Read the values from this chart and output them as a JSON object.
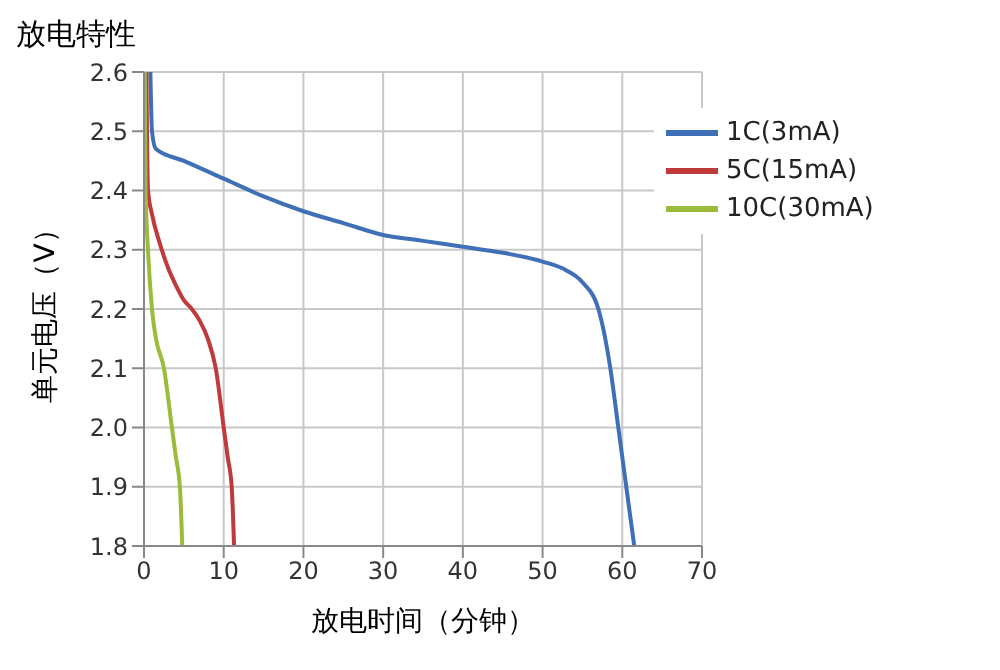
{
  "chart_data": {
    "type": "line",
    "title": "放电特性",
    "xlabel": "放电时间（分钟）",
    "ylabel": "单元电压（V）",
    "xlim": [
      0,
      70
    ],
    "xticks": [
      0,
      10,
      20,
      30,
      40,
      50,
      60,
      70
    ],
    "ylim": [
      1.8,
      2.6
    ],
    "yticks": [
      1.8,
      1.9,
      {
        "value": 2,
        "label": "2.0"
      },
      2.1,
      2.2,
      2.3,
      2.4,
      2.5,
      2.6
    ],
    "grid": true,
    "legend": "top right",
    "marker": "none",
    "line_style": "solid",
    "series": [
      {
        "name": "1C(3mA)",
        "color": "#3f6fb6",
        "x": [
          0.8,
          1,
          1.5,
          5,
          10,
          15,
          20,
          25,
          30,
          35,
          40,
          45,
          50,
          53,
          55,
          57,
          58.5,
          59.5,
          60.5,
          61.5
        ],
        "values": [
          2.6,
          2.5,
          2.47,
          2.45,
          2.42,
          2.39,
          2.365,
          2.345,
          2.325,
          2.315,
          2.305,
          2.295,
          2.28,
          2.265,
          2.245,
          2.2,
          2.1,
          2.0,
          1.9,
          1.8
        ]
      },
      {
        "name": "5C(15mA)",
        "color": "#c0393b",
        "x": [
          0.3,
          0.5,
          1,
          2,
          3,
          4,
          5,
          6,
          7,
          8,
          9,
          10,
          10.5,
          11,
          11.3
        ],
        "values": [
          2.6,
          2.4,
          2.36,
          2.31,
          2.27,
          2.24,
          2.215,
          2.2,
          2.18,
          2.15,
          2.1,
          2.0,
          1.95,
          1.9,
          1.8
        ]
      },
      {
        "name": "10C(30mA)",
        "color": "#9bbb3a",
        "x": [
          0.1,
          0.2,
          0.5,
          1,
          1.5,
          2.5,
          3.5,
          4,
          4.5,
          4.8
        ],
        "values": [
          2.6,
          2.4,
          2.3,
          2.2,
          2.15,
          2.1,
          2.0,
          1.95,
          1.9,
          1.8
        ]
      }
    ]
  }
}
